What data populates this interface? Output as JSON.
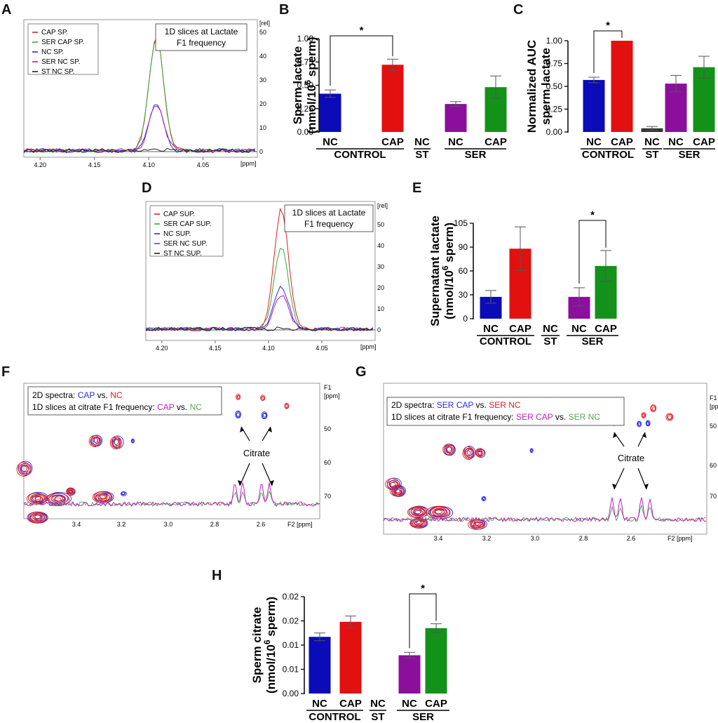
{
  "panels": {
    "A": {
      "label": "A",
      "box_lines": [
        "1D slices at Lactate",
        "F1 frequency"
      ],
      "legend": [
        {
          "name": "CAP SP.",
          "color": "#e02020"
        },
        {
          "name": "SER CAP SP.",
          "color": "#3aa83a"
        },
        {
          "name": "NC SP.",
          "color": "#2a2ae0"
        },
        {
          "name": "SER NC SP.",
          "color": "#b020b0"
        },
        {
          "name": "ST NC SP.",
          "color": "#222222"
        }
      ],
      "x_ticks": [
        "4.20",
        "4.15",
        "4.10",
        "4.05"
      ],
      "x_unit": "[ppm]",
      "y_unit": "[rel]",
      "y_ticks": [
        "50",
        "40",
        "30",
        "20",
        "10",
        "0"
      ],
      "peak_center": 4.093,
      "peaks": [
        {
          "color": "#e02020",
          "height": 48
        },
        {
          "color": "#3aa83a",
          "height": 47
        },
        {
          "color": "#2a2ae0",
          "height": 20
        },
        {
          "color": "#b020b0",
          "height": 19
        },
        {
          "color": "#222222",
          "height": 0.3
        }
      ]
    },
    "B": {
      "label": "B"
    },
    "C": {
      "label": "C"
    },
    "D": {
      "label": "D",
      "box_lines": [
        "1D slices at Lactate",
        "F1 frequency"
      ],
      "legend": [
        {
          "name": "CAP SUP.",
          "color": "#e02020"
        },
        {
          "name": "SER CAP SUP.",
          "color": "#3aa83a"
        },
        {
          "name": "NC SUP.",
          "color": "#2a2ae0"
        },
        {
          "name": "SER NC SUP.",
          "color": "#b020b0"
        },
        {
          "name": "ST NC SUP.",
          "color": "#222222"
        }
      ],
      "x_ticks": [
        "4.20",
        "4.15",
        "4.10",
        "4.05"
      ],
      "x_unit": "[ppm]",
      "y_unit": "[rel]",
      "y_ticks": [
        "50",
        "40",
        "30",
        "20",
        "10",
        "0"
      ],
      "peak_center": 4.088,
      "peaks": [
        {
          "color": "#e02020",
          "height": 57
        },
        {
          "color": "#3aa83a",
          "height": 39
        },
        {
          "color": "#2a2ae0",
          "height": 20
        },
        {
          "color": "#b020b0",
          "height": 16
        },
        {
          "color": "#222222",
          "height": 0.3
        }
      ]
    },
    "E": {
      "label": "E"
    },
    "F": {
      "label": "F",
      "box_line1_prefix": "2D spectra: ",
      "box_line1_a": "CAP",
      "box_line1_mid": " vs. ",
      "box_line1_b": "NC",
      "box_line2_prefix": "1D slices at citrate F1 frequency: ",
      "box_line2_a": "CAP",
      "box_line2_mid": " vs. ",
      "box_line2_b": "NC",
      "annotation": "Citrate",
      "x_ticks": [
        "3.4",
        "3.2",
        "3.0",
        "2.8",
        "2.6"
      ],
      "x_unit": "F2 [ppm]",
      "y_ticks": [
        "F1",
        "[ppm]",
        "50",
        "60",
        "70"
      ]
    },
    "G": {
      "label": "G",
      "box_line1_prefix": "2D spectra: ",
      "box_line1_a": "SER CAP",
      "box_line1_mid": " vs. ",
      "box_line1_b": "SER NC",
      "box_line2_prefix": "1D slices at citrate F1 frequency: ",
      "box_line2_a": "SER CAP",
      "box_line2_mid": " vs. ",
      "box_line2_b": "SER NC",
      "annotation": "Citrate",
      "x_ticks": [
        "3.4",
        "3.2",
        "3.0",
        "2.8",
        "2.6"
      ],
      "x_unit": "F2 [ppm]",
      "y_ticks": [
        "F1",
        "[ppm]",
        "50",
        "60",
        "70"
      ]
    },
    "H": {
      "label": "H"
    }
  },
  "colors": {
    "blue": "#0b0bb8",
    "red": "#e31010",
    "purple": "#8b0f9c",
    "green": "#13921a",
    "dark": "#333333",
    "spec_blue": "#2a2ae0",
    "spec_red": "#e02020",
    "spec_magenta": "#c020c0",
    "spec_green": "#5aa85a"
  },
  "chart_data": [
    {
      "panel": "B",
      "type": "bar",
      "ylabel_lines": [
        "Sperm lactate",
        "(nmol/10^6 sperm)"
      ],
      "yticks": [
        "0.00",
        "0.25",
        "0.50",
        "0.75",
        "1.00"
      ],
      "ylim": [
        0,
        1.0
      ],
      "categories": [
        "NC",
        "CAP",
        "NC",
        "NC",
        "CAP"
      ],
      "groups": [
        "CONTROL",
        "ST",
        "SER"
      ],
      "values": [
        0.41,
        0.72,
        0.0,
        0.3,
        0.48
      ],
      "errors": [
        0.04,
        0.06,
        0.0,
        0.025,
        0.12
      ],
      "bar_colors": [
        "blue",
        "red",
        "dark",
        "purple",
        "green"
      ],
      "significance": [
        {
          "from": 0,
          "to": 1,
          "label": "*"
        }
      ]
    },
    {
      "panel": "C",
      "type": "bar",
      "ylabel_lines": [
        "Normalized AUC",
        "sperm lactate"
      ],
      "yticks": [
        "0.00",
        "0.25",
        "0.50",
        "0.75",
        "1.00"
      ],
      "ylim": [
        0,
        1.0
      ],
      "categories": [
        "NC",
        "CAP",
        "NC",
        "NC",
        "CAP"
      ],
      "groups": [
        "CONTROL",
        "ST",
        "SER"
      ],
      "values": [
        0.57,
        1.0,
        0.04,
        0.53,
        0.71
      ],
      "errors": [
        0.03,
        0.0,
        0.02,
        0.09,
        0.12
      ],
      "bar_colors": [
        "blue",
        "red",
        "dark",
        "purple",
        "green"
      ],
      "significance": [
        {
          "from": 0,
          "to": 1,
          "label": "*"
        }
      ]
    },
    {
      "panel": "E",
      "type": "bar",
      "ylabel_lines": [
        "Supernatant lactate",
        "(nmol/10^6 sperm)"
      ],
      "yticks": [
        "0",
        "30",
        "60",
        "90",
        "105"
      ],
      "ylim": [
        0,
        105
      ],
      "categories": [
        "NC",
        "CAP",
        "NC",
        "NC",
        "CAP"
      ],
      "groups": [
        "CONTROL",
        "ST",
        "SER"
      ],
      "values": [
        24,
        77,
        0,
        24,
        58
      ],
      "errors": [
        7,
        24,
        0,
        10,
        17
      ],
      "bar_colors": [
        "blue",
        "red",
        "dark",
        "purple",
        "green"
      ],
      "significance": [
        {
          "from": 3,
          "to": 4,
          "label": "*"
        }
      ]
    },
    {
      "panel": "H",
      "type": "bar",
      "ylabel_lines": [
        "Sperm citrate",
        "(nmol/10^6 sperm)"
      ],
      "yticks": [
        "0.00",
        "0.01",
        "0.01",
        "0.02",
        "0.02"
      ],
      "ylim": [
        0,
        0.02
      ],
      "categories": [
        "NC",
        "CAP",
        "NC",
        "NC",
        "CAP"
      ],
      "groups": [
        "CONTROL",
        "ST",
        "SER"
      ],
      "values": [
        0.0117,
        0.0148,
        0.0,
        0.0079,
        0.0135
      ],
      "errors": [
        0.0008,
        0.0012,
        0.0,
        0.0006,
        0.0009
      ],
      "bar_colors": [
        "blue",
        "red",
        "dark",
        "purple",
        "green"
      ],
      "significance": [
        {
          "from": 3,
          "to": 4,
          "label": "*"
        }
      ]
    }
  ]
}
